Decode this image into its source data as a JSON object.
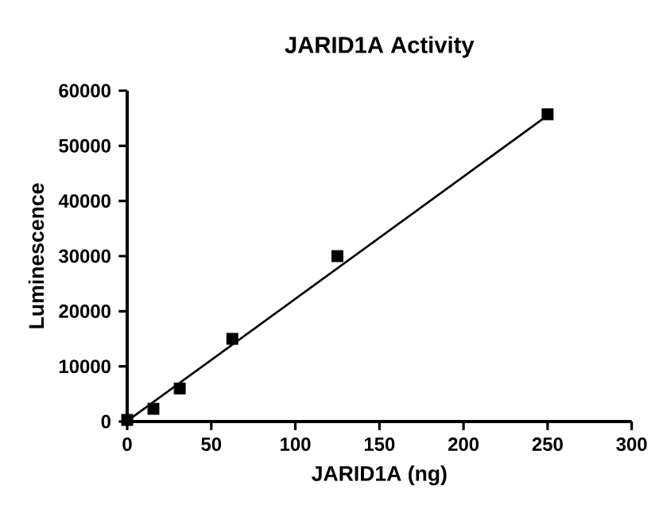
{
  "chart_data": {
    "type": "scatter",
    "title": "JARID1A Activity",
    "xlabel": "JARID1A (ng)",
    "ylabel": "Luminescence",
    "series": [
      {
        "color": "#000000",
        "marker": "square",
        "x": [
          0,
          15.6,
          31.25,
          62.5,
          125,
          250
        ],
        "values": [
          300,
          2300,
          6000,
          15000,
          30000,
          55700
        ]
      },
      {
        "type": "line",
        "color": "#000000",
        "marker": "none",
        "line_style": "solid",
        "x": [
          0,
          250
        ],
        "values": [
          100,
          55500
        ]
      }
    ],
    "xlim": [
      0,
      300
    ],
    "ylim": [
      0,
      60000
    ],
    "xticks": [
      0,
      50,
      100,
      150,
      200,
      250,
      300
    ],
    "yticks": [
      0,
      10000,
      20000,
      30000,
      40000,
      50000,
      60000
    ]
  }
}
